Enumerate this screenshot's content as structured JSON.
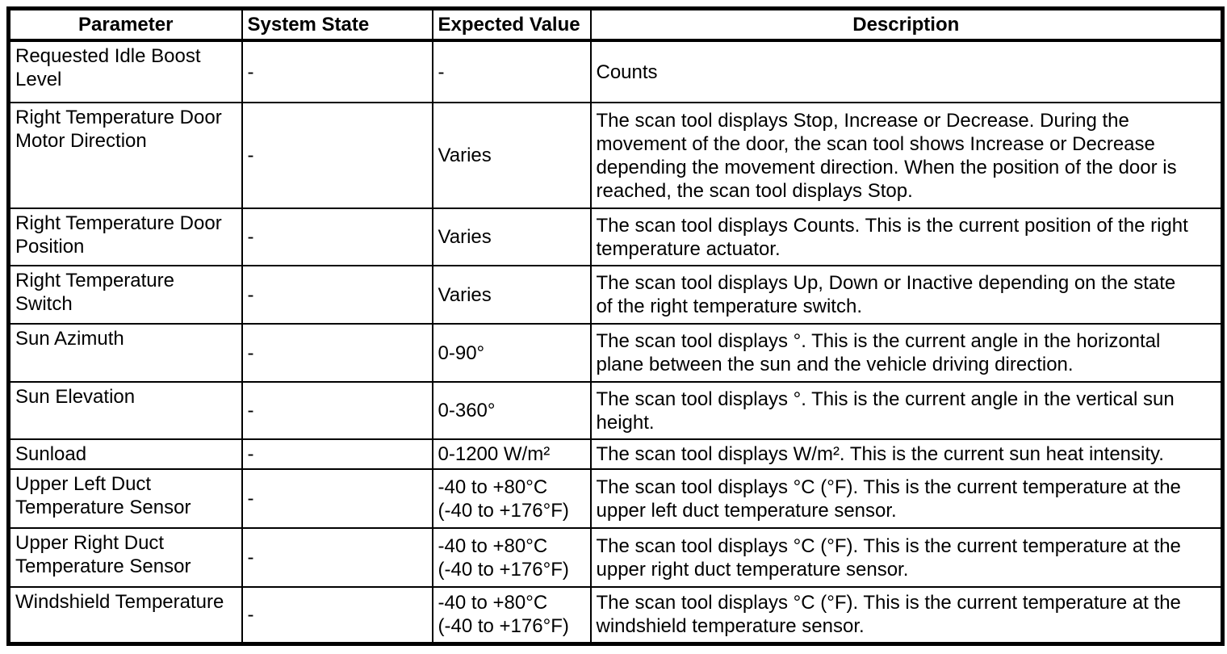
{
  "table": {
    "headers": {
      "parameter": "Parameter",
      "system_state": "System State",
      "expected_value": "Expected Value",
      "description": "Description"
    },
    "rows": [
      {
        "parameter": "Requested Idle Boost Level",
        "system_state": "-",
        "expected_value": "-",
        "description": "Counts"
      },
      {
        "parameter": "Right Temperature Door Motor Direction",
        "system_state": "-",
        "expected_value": "Varies",
        "description": "The scan tool displays Stop, Increase or Decrease. During the movement of the door, the scan tool shows Increase or Decrease depending the movement direction. When the position of the door is reached, the scan tool displays Stop."
      },
      {
        "parameter": "Right Temperature Door Position",
        "system_state": "-",
        "expected_value": "Varies",
        "description": "The scan tool displays Counts. This is the current position of the right temperature actuator."
      },
      {
        "parameter": "Right Temperature Switch",
        "system_state": "-",
        "expected_value": "Varies",
        "description": "The scan tool displays Up, Down or Inactive depending on the state of the right temperature switch."
      },
      {
        "parameter": "Sun Azimuth",
        "system_state": "-",
        "expected_value": "0-90°",
        "description": "The scan tool displays °. This is the current angle in the horizontal plane between the sun and the vehicle driving direction."
      },
      {
        "parameter": "Sun Elevation",
        "system_state": "-",
        "expected_value": "0-360°",
        "description": "The scan tool displays °. This is the current angle in the vertical sun height."
      },
      {
        "parameter": "Sunload",
        "system_state": "-",
        "expected_value": "0-1200 W/m²",
        "description": "The scan tool displays W/m². This is the current sun heat intensity."
      },
      {
        "parameter": "Upper Left Duct Temperature Sensor",
        "system_state": "-",
        "expected_value": "-40 to +80°C (-40 to +176°F)",
        "description": "The scan tool displays °C (°F). This is the current temperature at the upper left duct temperature sensor."
      },
      {
        "parameter": "Upper Right Duct Temperature Sensor",
        "system_state": "-",
        "expected_value": "-40 to +80°C (-40 to +176°F)",
        "description": "The scan tool displays °C (°F). This is the current temperature at the upper right duct temperature sensor."
      },
      {
        "parameter": "Windshield Temperature",
        "system_state": "-",
        "expected_value": "-40 to +80°C (-40 to +176°F)",
        "description": "The scan tool displays °C (°F). This is the current temperature at the windshield temperature sensor."
      }
    ]
  }
}
